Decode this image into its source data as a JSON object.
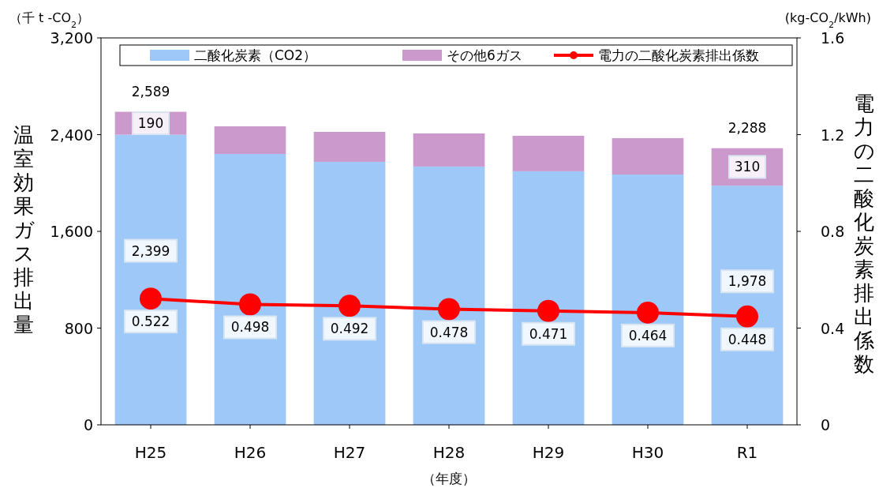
{
  "chart_data": {
    "type": "bar",
    "stacked": true,
    "categories": [
      "H25",
      "H26",
      "H27",
      "H28",
      "H29",
      "H30",
      "R1"
    ],
    "series": [
      {
        "name": "二酸化炭素（CO2）",
        "color": "#9dc8f8",
        "values": [
          2399,
          2240,
          2175,
          2136,
          2097,
          2070,
          1978
        ],
        "value_labels": [
          "2,399",
          null,
          null,
          null,
          null,
          null,
          "1,978"
        ]
      },
      {
        "name": "その他6ガス",
        "color": "#cc99cc",
        "values": [
          190,
          229,
          248,
          274,
          293,
          301,
          310
        ],
        "value_labels": [
          "190",
          null,
          null,
          null,
          null,
          null,
          "310"
        ]
      },
      {
        "name": "電力の二酸化炭素排出係数",
        "type": "line",
        "axis": "y2",
        "color": "#ff0000",
        "values": [
          0.522,
          0.498,
          0.492,
          0.478,
          0.471,
          0.464,
          0.448
        ],
        "value_labels": [
          "0.522",
          "0.498",
          "0.492",
          "0.478",
          "0.471",
          "0.464",
          "0.448"
        ]
      }
    ],
    "totals": [
      "2,589",
      null,
      null,
      null,
      null,
      null,
      "2,288"
    ],
    "ylim": [
      0,
      3200
    ],
    "yticks": [
      {
        "value": 0,
        "label": "0"
      },
      {
        "value": 800,
        "label": "800"
      },
      {
        "value": 1600,
        "label": "1,600"
      },
      {
        "value": 2400,
        "label": "2,400"
      },
      {
        "value": 3200,
        "label": "3,200"
      }
    ],
    "y2lim": [
      0,
      1.6
    ],
    "y2ticks": [
      {
        "value": 0,
        "label": "0"
      },
      {
        "value": 0.4,
        "label": "0.4"
      },
      {
        "value": 0.8,
        "label": "0.8"
      },
      {
        "value": 1.2,
        "label": "1.2"
      },
      {
        "value": 1.6,
        "label": "1.6"
      }
    ],
    "ylabel": "温室効果ガス排出量",
    "y2label": "電力の二酸化炭素排出係数",
    "xlabel": "（年度）",
    "annotations": [
      "（千 t -CO$_{2}$）",
      "(kg-CO$_{2}$/kWh)"
    ],
    "legend": "top",
    "marker": "circle",
    "line_style": "solid",
    "grid": false
  }
}
